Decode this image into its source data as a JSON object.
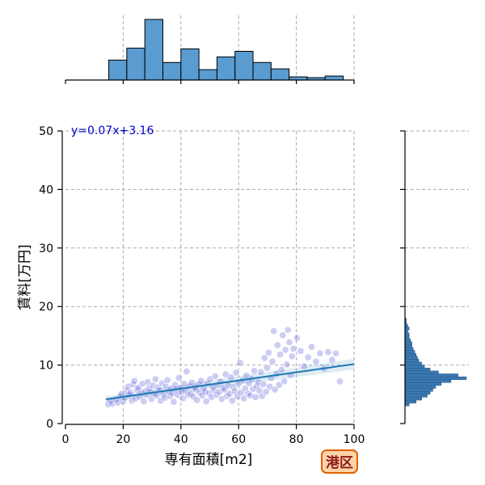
{
  "chart_data": {
    "type": "scatter",
    "title": "",
    "xlabel": "専有面積[m2]",
    "ylabel": "賃料[万円]",
    "xlim": [
      0,
      100
    ],
    "ylim": [
      0,
      50
    ],
    "x_ticks": [
      0,
      20,
      40,
      60,
      80,
      100
    ],
    "y_ticks": [
      0,
      10,
      20,
      30,
      40,
      50
    ],
    "grid": true,
    "regression": {
      "slope": 0.07,
      "intercept": 3.16,
      "x_range": [
        14,
        100
      ],
      "label": "y=0.07x+3.16"
    },
    "badge": "港区",
    "points": [
      [
        14.8,
        3.3
      ],
      [
        15.6,
        3.9
      ],
      [
        16.2,
        3.4
      ],
      [
        17.5,
        4.1
      ],
      [
        18.2,
        3.6
      ],
      [
        18.9,
        4.6
      ],
      [
        19.4,
        5.1
      ],
      [
        20.0,
        3.8
      ],
      [
        20.6,
        4.4
      ],
      [
        21.1,
        5.6
      ],
      [
        21.7,
        6.3
      ],
      [
        22.0,
        4.9
      ],
      [
        22.5,
        5.3
      ],
      [
        23.0,
        3.9
      ],
      [
        23.4,
        6.7
      ],
      [
        23.9,
        7.3
      ],
      [
        24.3,
        4.3
      ],
      [
        24.8,
        5.8
      ],
      [
        25.3,
        6.1
      ],
      [
        25.8,
        4.6
      ],
      [
        26.2,
        5.2
      ],
      [
        26.7,
        6.8
      ],
      [
        27.1,
        3.8
      ],
      [
        27.6,
        5.5
      ],
      [
        28.0,
        4.9
      ],
      [
        28.5,
        7.1
      ],
      [
        28.9,
        6.0
      ],
      [
        29.4,
        5.4
      ],
      [
        29.8,
        4.2
      ],
      [
        30.3,
        6.5
      ],
      [
        30.7,
        5.1
      ],
      [
        31.2,
        7.6
      ],
      [
        31.6,
        4.8
      ],
      [
        32.1,
        6.2
      ],
      [
        32.6,
        5.7
      ],
      [
        33.0,
        3.9
      ],
      [
        33.5,
        6.9
      ],
      [
        33.9,
        5.0
      ],
      [
        34.4,
        4.4
      ],
      [
        34.8,
        6.3
      ],
      [
        35.3,
        7.4
      ],
      [
        35.7,
        5.5
      ],
      [
        36.2,
        4.7
      ],
      [
        36.6,
        6.0
      ],
      [
        37.1,
        5.2
      ],
      [
        37.5,
        3.7
      ],
      [
        38.0,
        6.6
      ],
      [
        38.4,
        5.9
      ],
      [
        38.9,
        4.9
      ],
      [
        39.3,
        7.8
      ],
      [
        39.8,
        6.1
      ],
      [
        40.2,
        5.4
      ],
      [
        40.7,
        4.3
      ],
      [
        41.1,
        6.8
      ],
      [
        41.6,
        5.6
      ],
      [
        42.0,
        8.9
      ],
      [
        42.5,
        4.9
      ],
      [
        42.9,
        6.4
      ],
      [
        43.4,
        5.1
      ],
      [
        43.8,
        7.0
      ],
      [
        44.3,
        4.6
      ],
      [
        44.7,
        6.2
      ],
      [
        45.2,
        5.8
      ],
      [
        45.6,
        4.0
      ],
      [
        46.1,
        6.7
      ],
      [
        46.5,
        5.3
      ],
      [
        47.0,
        7.3
      ],
      [
        47.4,
        4.8
      ],
      [
        47.9,
        6.0
      ],
      [
        48.3,
        5.5
      ],
      [
        48.8,
        3.8
      ],
      [
        49.2,
        6.9
      ],
      [
        49.7,
        5.2
      ],
      [
        50.1,
        7.6
      ],
      [
        50.6,
        4.5
      ],
      [
        51.0,
        6.3
      ],
      [
        51.5,
        5.7
      ],
      [
        51.9,
        8.1
      ],
      [
        52.4,
        4.9
      ],
      [
        52.8,
        6.6
      ],
      [
        53.3,
        5.4
      ],
      [
        53.7,
        7.2
      ],
      [
        54.2,
        4.2
      ],
      [
        54.6,
        6.1
      ],
      [
        55.1,
        5.8
      ],
      [
        55.5,
        8.4
      ],
      [
        56.0,
        4.7
      ],
      [
        56.4,
        6.5
      ],
      [
        56.9,
        5.1
      ],
      [
        57.3,
        7.9
      ],
      [
        57.8,
        3.9
      ],
      [
        58.2,
        6.2
      ],
      [
        58.7,
        5.5
      ],
      [
        59.1,
        8.7
      ],
      [
        59.6,
        4.6
      ],
      [
        60.0,
        6.8
      ],
      [
        60.5,
        10.4
      ],
      [
        60.9,
        5.3
      ],
      [
        61.4,
        7.4
      ],
      [
        61.8,
        4.3
      ],
      [
        62.3,
        6.0
      ],
      [
        62.7,
        8.2
      ],
      [
        63.2,
        5.1
      ],
      [
        63.6,
        6.9
      ],
      [
        64.1,
        4.8
      ],
      [
        64.5,
        7.6
      ],
      [
        65.0,
        5.9
      ],
      [
        65.4,
        9.0
      ],
      [
        65.9,
        4.5
      ],
      [
        66.3,
        6.4
      ],
      [
        66.8,
        7.1
      ],
      [
        67.2,
        5.6
      ],
      [
        67.7,
        8.8
      ],
      [
        68.1,
        4.7
      ],
      [
        68.6,
        6.7
      ],
      [
        69.0,
        11.2
      ],
      [
        69.5,
        5.4
      ],
      [
        69.9,
        9.5
      ],
      [
        70.4,
        12.1
      ],
      [
        70.8,
        6.3
      ],
      [
        71.3,
        7.8
      ],
      [
        71.7,
        10.6
      ],
      [
        72.2,
        15.8
      ],
      [
        72.6,
        5.8
      ],
      [
        73.1,
        8.5
      ],
      [
        73.5,
        13.4
      ],
      [
        74.0,
        6.6
      ],
      [
        74.4,
        11.8
      ],
      [
        74.9,
        9.2
      ],
      [
        75.3,
        15.1
      ],
      [
        75.8,
        7.2
      ],
      [
        76.2,
        12.6
      ],
      [
        76.7,
        10.1
      ],
      [
        77.1,
        16.0
      ],
      [
        77.6,
        13.9
      ],
      [
        78.0,
        8.3
      ],
      [
        78.5,
        11.5
      ],
      [
        79.0,
        12.8
      ],
      [
        80.2,
        14.6
      ],
      [
        81.5,
        12.4
      ],
      [
        82.7,
        9.8
      ],
      [
        84.1,
        11.3
      ],
      [
        85.3,
        13.1
      ],
      [
        86.8,
        10.6
      ],
      [
        88.2,
        12.0
      ],
      [
        89.6,
        9.4
      ],
      [
        91.0,
        12.2
      ],
      [
        92.4,
        10.9
      ],
      [
        93.7,
        12.0
      ],
      [
        95.1,
        7.2
      ]
    ],
    "top_histogram": {
      "bin_start": 15,
      "bin_width": 6.25,
      "counts": [
        25,
        40,
        76,
        22,
        39,
        13,
        29,
        36,
        22,
        14,
        4,
        3,
        5
      ]
    },
    "right_histogram": {
      "bin_start": 0,
      "bin_width": 0.5,
      "counts": [
        0,
        0,
        0,
        0,
        0,
        0,
        3,
        8,
        12,
        16,
        18,
        20,
        22,
        26,
        33,
        44,
        38,
        24,
        18,
        14,
        12,
        10,
        9,
        8,
        7,
        6,
        5,
        5,
        4,
        3,
        3,
        2,
        3,
        2,
        1,
        1
      ]
    }
  }
}
